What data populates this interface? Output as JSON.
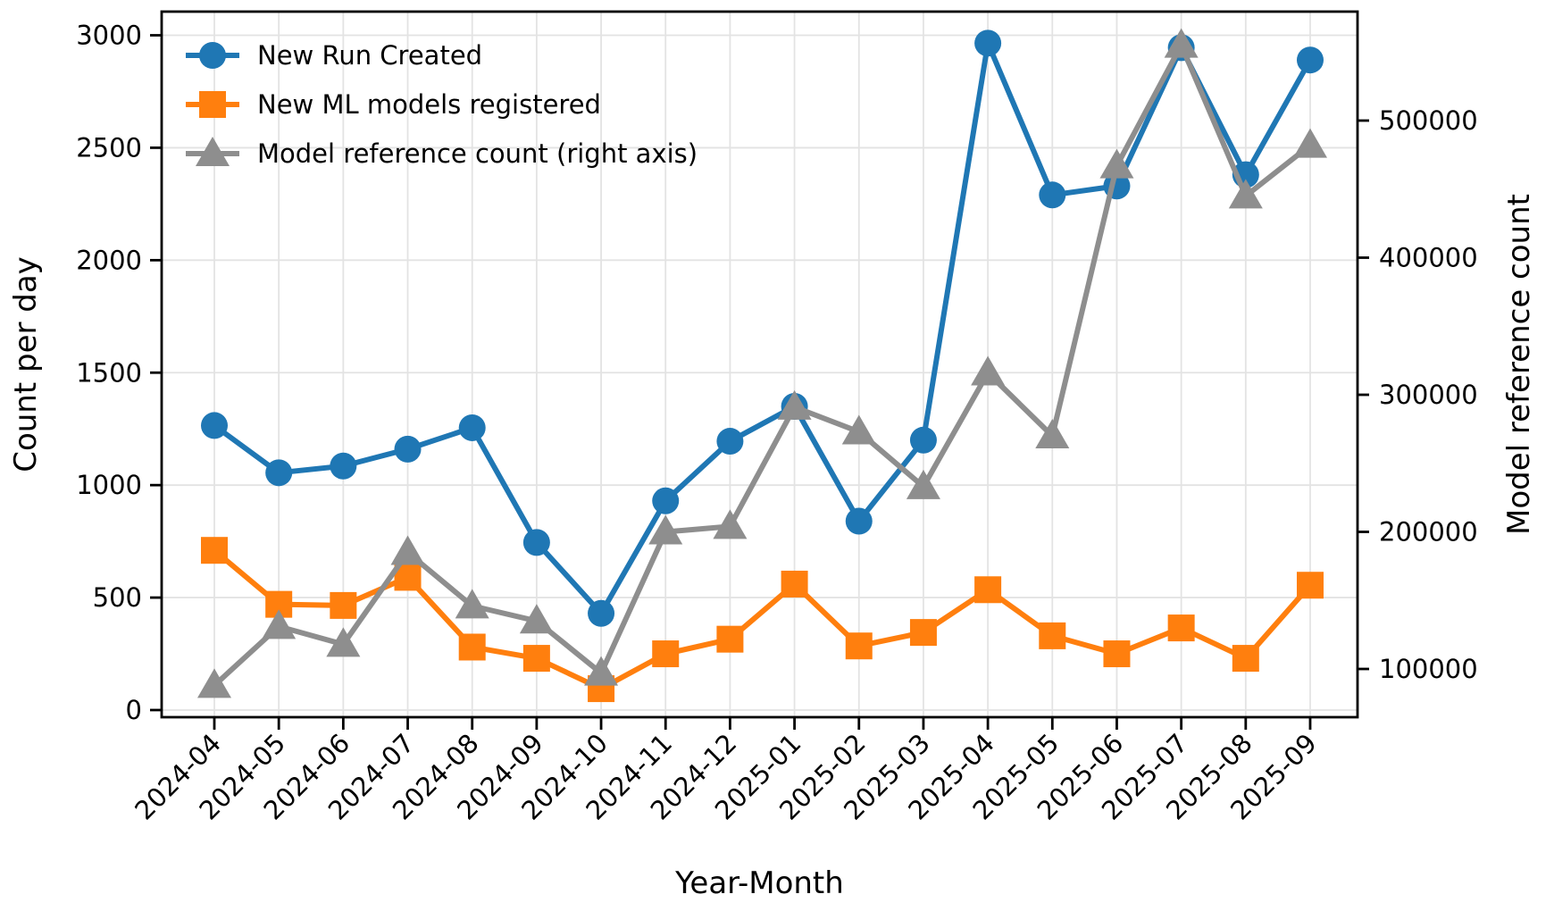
{
  "figure": {
    "background": "#ffffff",
    "title": ""
  },
  "chart_data": {
    "type": "line",
    "title": "",
    "xlabel": "Year-Month",
    "ylabel_left": "Count per day",
    "ylabel_right": "Model reference count",
    "grid": true,
    "legend_position": "upper left",
    "categories": [
      "2024-04",
      "2024-05",
      "2024-06",
      "2024-07",
      "2024-08",
      "2024-09",
      "2024-10",
      "2024-11",
      "2024-12",
      "2025-01",
      "2025-02",
      "2025-03",
      "2025-04",
      "2025-05",
      "2025-06",
      "2025-07",
      "2025-08",
      "2025-09"
    ],
    "left_axis": {
      "label": "Count per day",
      "ticks": [
        0,
        500,
        1000,
        1500,
        2000,
        2500,
        3000
      ],
      "range": [
        0,
        3000
      ]
    },
    "right_axis": {
      "label": "Model reference count",
      "ticks": [
        100000,
        200000,
        300000,
        400000,
        500000
      ],
      "range": [
        65000,
        580000
      ]
    },
    "series": [
      {
        "name": "New Run Created",
        "axis": "left",
        "color": "#1f77b4",
        "marker": "circle",
        "values": [
          1265,
          1055,
          1085,
          1160,
          1255,
          745,
          430,
          930,
          1195,
          1350,
          840,
          1200,
          2965,
          2290,
          2330,
          2945,
          2380,
          2890
        ]
      },
      {
        "name": "New ML models registered",
        "axis": "left",
        "color": "#ff7f0e",
        "marker": "square",
        "values": [
          710,
          470,
          465,
          590,
          280,
          230,
          95,
          250,
          315,
          560,
          285,
          345,
          535,
          330,
          250,
          365,
          230,
          555
        ]
      },
      {
        "name": "Model reference count (right axis)",
        "axis": "right",
        "color": "#8e8e8e",
        "marker": "triangle",
        "values": [
          88000,
          131000,
          118000,
          185000,
          146000,
          135000,
          97000,
          200000,
          204000,
          291000,
          273000,
          233000,
          316000,
          270000,
          467000,
          555000,
          445000,
          482000
        ]
      }
    ]
  }
}
